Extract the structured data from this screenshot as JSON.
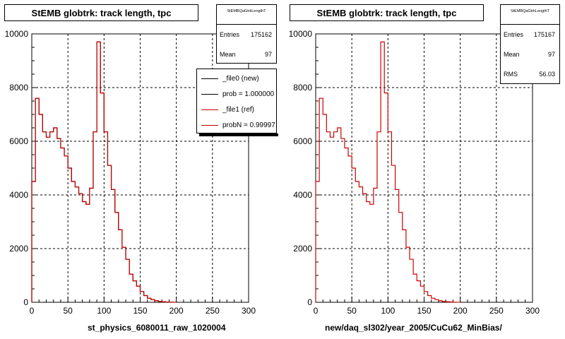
{
  "chart_data": [
    {
      "type": "line",
      "title": "StEMB globtrk: track length, tpc",
      "xlabel": "st_physics_6080011_raw_1020004",
      "xlim": [
        0,
        300
      ],
      "ylim": [
        0,
        10000
      ],
      "xticks": [
        0,
        50,
        100,
        150,
        200,
        250,
        300
      ],
      "yticks": [
        0,
        2000,
        4000,
        6000,
        8000,
        10000
      ],
      "grid": true,
      "bin_edges_start": 0,
      "bin_width": 5,
      "series": [
        {
          "name": "_file0 (new)",
          "color": "#000000",
          "values": [
            4500,
            7600,
            7000,
            6350,
            6150,
            6350,
            6500,
            6100,
            5750,
            5450,
            5000,
            4500,
            4300,
            4050,
            3750,
            3650,
            4250,
            6350,
            9700,
            7800,
            6350,
            5100,
            4200,
            3350,
            2700,
            2050,
            1600,
            1050,
            800,
            600,
            400,
            250,
            150,
            100,
            60,
            30,
            20,
            10,
            5,
            2
          ]
        },
        {
          "name": "_file1 (ref)",
          "color": "#cc0000",
          "values": [
            4500,
            7600,
            7000,
            6350,
            6150,
            6350,
            6500,
            6100,
            5750,
            5450,
            5000,
            4500,
            4300,
            4050,
            3750,
            3650,
            4250,
            6350,
            9700,
            7800,
            6350,
            5100,
            4200,
            3350,
            2700,
            2050,
            1600,
            1050,
            800,
            600,
            400,
            250,
            150,
            100,
            60,
            30,
            20,
            10,
            5,
            2
          ]
        }
      ]
    },
    {
      "type": "line",
      "title": "StEMB globtrk: track length, tpc",
      "xlabel": "new/daq_sl302/year_2005/CuCu62_MinBias/",
      "xlim": [
        0,
        300
      ],
      "ylim": [
        0,
        10000
      ],
      "xticks": [
        0,
        50,
        100,
        150,
        200,
        250,
        300
      ],
      "yticks": [
        0,
        2000,
        4000,
        6000,
        8000,
        10000
      ],
      "grid": true,
      "bin_edges_start": 0,
      "bin_width": 5,
      "series": [
        {
          "name": "",
          "color": "#cc0000",
          "values": [
            4500,
            7600,
            7000,
            6350,
            6150,
            6350,
            6500,
            6100,
            5750,
            5450,
            5000,
            4500,
            4300,
            4050,
            3750,
            3650,
            4250,
            6350,
            9700,
            7800,
            6350,
            5100,
            4200,
            3350,
            2700,
            2050,
            1600,
            1050,
            800,
            600,
            400,
            250,
            150,
            100,
            60,
            30,
            20,
            10,
            5,
            2
          ]
        }
      ]
    }
  ],
  "panels": [
    {
      "title": "StEMB globtrk: track length, tpc",
      "stats": {
        "name": "StEMBQaGtrkLengthT",
        "entries_label": "Entries",
        "entries": "175162",
        "mean_label": "Mean",
        "mean": "97"
      },
      "legend": [
        {
          "label": "_file0 (new)",
          "color": "#000000"
        },
        {
          "label": "prob = 1.000000",
          "color": "#000000"
        },
        {
          "label": "_file1 (ref)",
          "color": "#cc0000"
        },
        {
          "label": "probN = 0.99997",
          "color": "#cc0000"
        }
      ],
      "xlabel": "st_physics_6080011_raw_1020004"
    },
    {
      "title": "StEMB globtrk: track length, tpc",
      "stats": {
        "name": "StEMBQaGtrkLengthT",
        "entries_label": "Entries",
        "entries": "175167",
        "mean_label": "Mean",
        "mean": "97",
        "rms_label": "RMS",
        "rms": "56.03"
      },
      "xlabel": "new/daq_sl302/year_2005/CuCu62_MinBias/"
    }
  ]
}
